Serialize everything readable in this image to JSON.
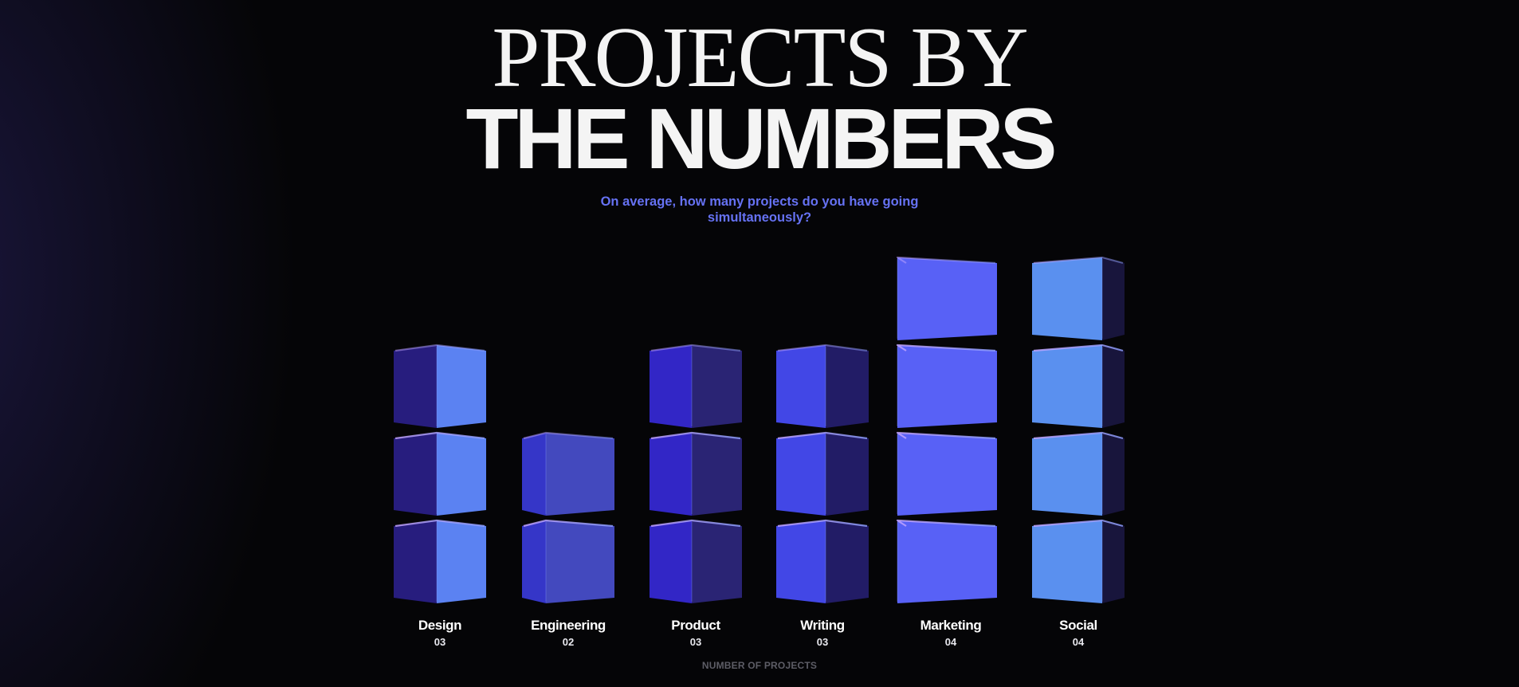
{
  "header": {
    "title_line1": "PROJECTS BY",
    "title_line2": "THE NUMBERS",
    "subtitle_line1": "On average, how many projects do you have going",
    "subtitle_line2": "simultaneously?"
  },
  "chart_data": {
    "type": "bar",
    "style": "stacked 3D cubes, one cube per project",
    "title": "",
    "question": "On average, how many projects do you have going simultaneously?",
    "xlabel": "NUMBER OF PROJECTS",
    "ylabel": "",
    "ylim": [
      0,
      4
    ],
    "grid": false,
    "legend": "none",
    "categories": [
      "Design",
      "Engineering",
      "Product",
      "Writing",
      "Marketing",
      "Social"
    ],
    "values": [
      3,
      2,
      3,
      3,
      4,
      4
    ],
    "value_labels": [
      "03",
      "02",
      "03",
      "03",
      "04",
      "04"
    ],
    "colors": [
      {
        "light": "#5b82f2",
        "dark": "#271d7e"
      },
      {
        "light": "#3536c8",
        "dark": "#4349be"
      },
      {
        "light": "#3226c6",
        "dark": "#2a2474"
      },
      {
        "light": "#4247e6",
        "dark": "#221c66"
      },
      {
        "light": "#5861f6",
        "dark": "#1f1a54"
      },
      {
        "light": "#5a90ef",
        "dark": "#18153c"
      }
    ]
  },
  "colors": {
    "background": "#050507",
    "title": "#f4f4f4",
    "subtitle": "#6672f4",
    "axis_caption": "#5d5d66"
  }
}
